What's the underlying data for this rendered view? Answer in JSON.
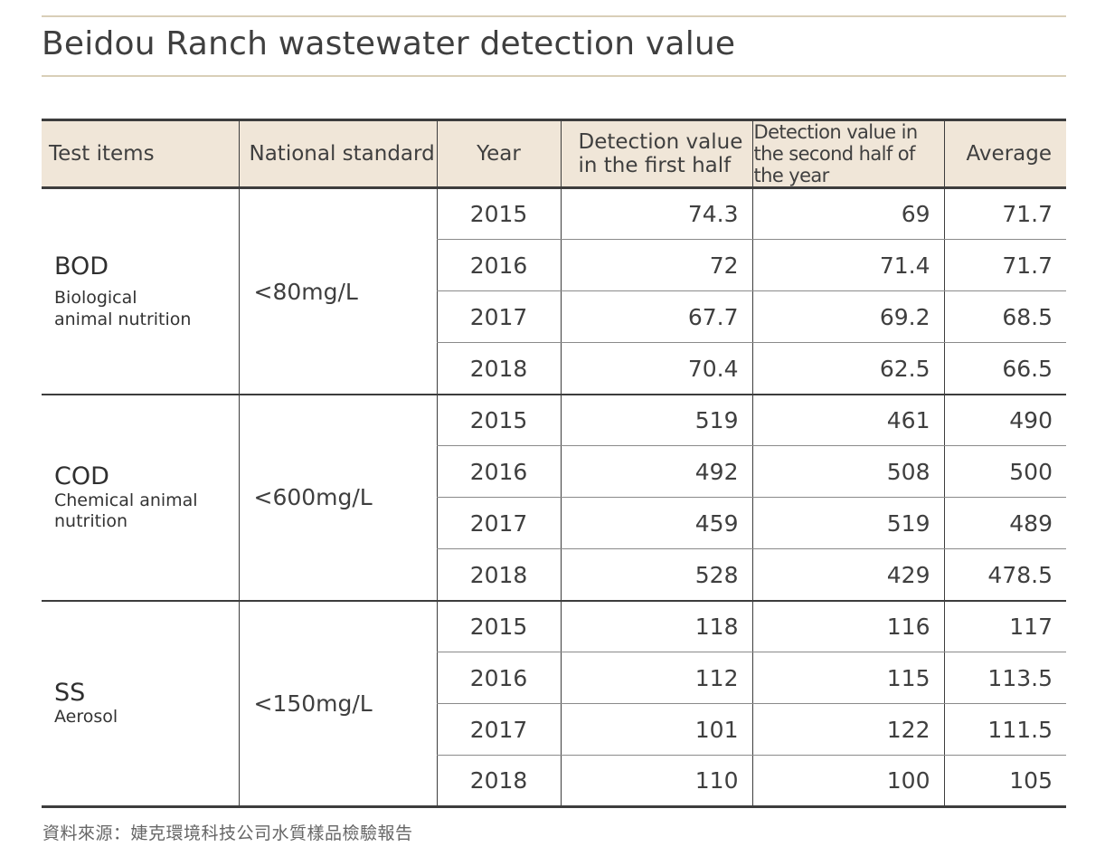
{
  "title": "Beidou Ranch wastewater detection value",
  "headers": {
    "test_items": "Test items",
    "national_standard": "National standard",
    "year": "Year",
    "first_half": "Detection value in the first half",
    "second_half": "Detection value in the second half of the year",
    "average": "Average"
  },
  "groups": [
    {
      "code": "BOD",
      "name": "Biological animal nutrition",
      "standard": "<80mg/L",
      "rows": [
        {
          "year": "2015",
          "first": "74.3",
          "second": "69",
          "average": "71.7"
        },
        {
          "year": "2016",
          "first": "72",
          "second": "71.4",
          "average": "71.7"
        },
        {
          "year": "2017",
          "first": "67.7",
          "second": "69.2",
          "average": "68.5"
        },
        {
          "year": "2018",
          "first": "70.4",
          "second": "62.5",
          "average": "66.5"
        }
      ]
    },
    {
      "code": "COD",
      "name": "Chemical animal nutrition",
      "standard": "<600mg/L",
      "rows": [
        {
          "year": "2015",
          "first": "519",
          "second": "461",
          "average": "490"
        },
        {
          "year": "2016",
          "first": "492",
          "second": "508",
          "average": "500"
        },
        {
          "year": "2017",
          "first": "459",
          "second": "519",
          "average": "489"
        },
        {
          "year": "2018",
          "first": "528",
          "second": "429",
          "average": "478.5"
        }
      ]
    },
    {
      "code": "SS",
      "name": "Aerosol",
      "standard": "<150mg/L",
      "rows": [
        {
          "year": "2015",
          "first": "118",
          "second": "116",
          "average": "117"
        },
        {
          "year": "2016",
          "first": "112",
          "second": "115",
          "average": "113.5"
        },
        {
          "year": "2017",
          "first": "101",
          "second": "122",
          "average": "111.5"
        },
        {
          "year": "2018",
          "first": "110",
          "second": "100",
          "average": "105"
        }
      ]
    }
  ],
  "footnote": "資料來源：婕克環境科技公司水質樣品檢驗報告",
  "colors": {
    "header_bg": "#f0e6d8",
    "rule": "#d9cfb8",
    "border": "#3d3d3d"
  }
}
